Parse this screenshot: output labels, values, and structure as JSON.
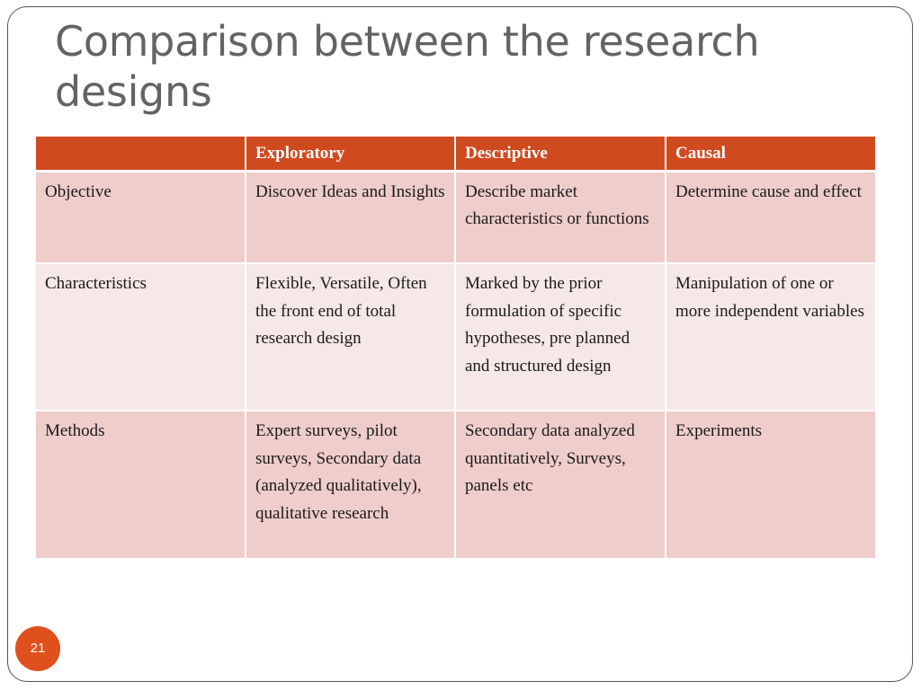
{
  "slide": {
    "title": "Comparison between the research designs",
    "page_number": "21"
  },
  "table": {
    "headers": [
      "",
      "Exploratory",
      "Descriptive",
      "Causal"
    ],
    "rows": [
      {
        "label": "Objective",
        "cells": [
          "Discover Ideas and Insights",
          "Describe market characteristics or functions",
          "Determine cause and effect"
        ]
      },
      {
        "label": "Characteristics",
        "cells": [
          "Flexible, Versatile, Often the front end of total research design",
          "Marked by the prior formulation of specific hypotheses, pre planned and structured design",
          "Manipulation of one or more independent variables"
        ]
      },
      {
        "label": "Methods",
        "cells": [
          "Expert surveys, pilot surveys, Secondary data (analyzed qualitatively), qualitative research",
          "Secondary data analyzed quantitatively, Surveys, panels etc",
          "Experiments"
        ]
      }
    ]
  },
  "colors": {
    "header_bg": "#d04a20",
    "row_dark": "#eecdcb",
    "row_light": "#f6e8e7",
    "title_text": "#636363",
    "badge_bg": "#e0501c"
  }
}
